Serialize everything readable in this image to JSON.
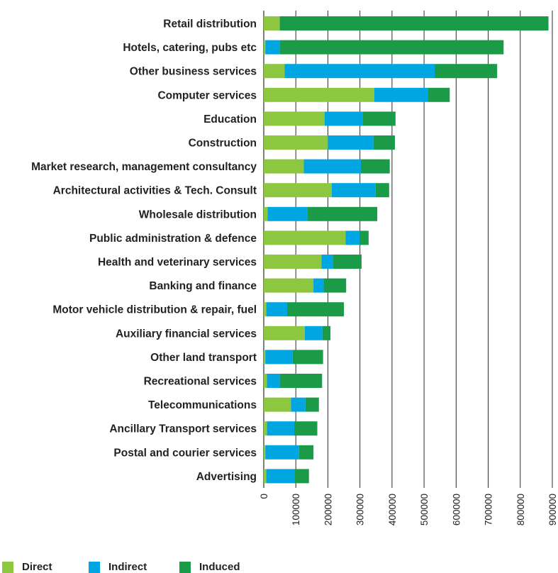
{
  "chart_data": {
    "type": "bar",
    "orientation": "horizontal",
    "stacked": true,
    "categories": [
      "Retail distribution",
      "Hotels, catering, pubs etc",
      "Other business services",
      "Computer services",
      "Education",
      "Construction",
      "Market research, management consultancy",
      "Architectural activities & Tech. Consult",
      "Wholesale distribution",
      "Public administration & defence",
      "Health and veterinary services",
      "Banking and finance",
      "Motor vehicle distribution & repair, fuel",
      "Auxiliary financial services",
      "Other land transport",
      "Recreational services",
      "Telecommunications",
      "Ancillary Transport services",
      "Postal and courier services",
      "Advertising"
    ],
    "series": [
      {
        "name": "Direct",
        "color": "#8dc63f",
        "values": [
          50000,
          5000,
          65000,
          345000,
          190000,
          200000,
          125000,
          212000,
          12000,
          255000,
          180000,
          155000,
          8000,
          128000,
          5000,
          10000,
          85000,
          10000,
          5000,
          8000
        ]
      },
      {
        "name": "Indirect",
        "color": "#00a6e2",
        "values": [
          0,
          45000,
          468000,
          168000,
          118000,
          142000,
          178000,
          137000,
          125000,
          45000,
          35000,
          32000,
          65000,
          55000,
          85000,
          40000,
          45000,
          85000,
          105000,
          88000
        ]
      },
      {
        "name": "Induced",
        "color": "#1b9a48",
        "values": [
          838000,
          698000,
          195000,
          67000,
          103000,
          67000,
          90000,
          42000,
          217000,
          27000,
          90000,
          70000,
          177000,
          25000,
          95000,
          132000,
          42000,
          72000,
          45000,
          45000
        ]
      }
    ],
    "x_ticks": [
      "0",
      "100000",
      "200000",
      "300000",
      "400000",
      "500000",
      "600000",
      "700000",
      "800000",
      "900000"
    ],
    "xlim": [
      0,
      900000
    ],
    "grid": "vertical",
    "legend_position": "bottom-left",
    "title": "",
    "xlabel": "",
    "ylabel": ""
  }
}
